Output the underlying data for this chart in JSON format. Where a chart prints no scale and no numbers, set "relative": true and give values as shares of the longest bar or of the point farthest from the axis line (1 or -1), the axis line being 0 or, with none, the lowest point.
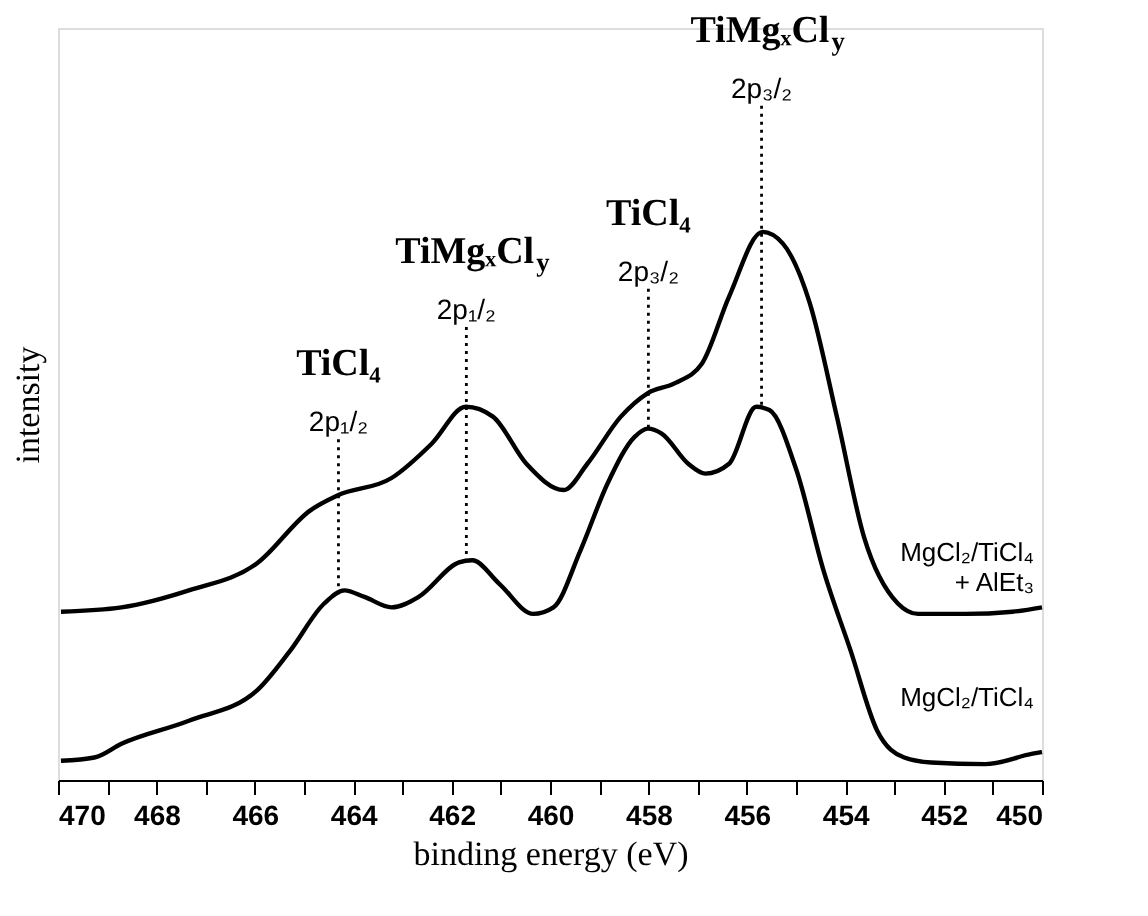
{
  "chart_data": {
    "type": "line",
    "relative": true,
    "xlabel": "binding energy (eV)",
    "ylabel": "intensity",
    "xlim": [
      470,
      450
    ],
    "xticks": [
      470,
      {
        "value": 469,
        "label": null
      },
      468,
      {
        "value": 467,
        "label": null
      },
      466,
      {
        "value": 465,
        "label": null
      },
      464,
      {
        "value": 463,
        "label": null
      },
      462,
      {
        "value": 461,
        "label": null
      },
      460,
      {
        "value": 459,
        "label": null
      },
      458,
      {
        "value": 457,
        "label": null
      },
      456,
      {
        "value": 455,
        "label": null
      },
      454,
      {
        "value": 453,
        "label": null
      },
      452,
      {
        "value": 451,
        "label": null
      },
      450
    ],
    "grid": false,
    "marker": "none",
    "line_style": "solid",
    "series": [
      {
        "name": "MgCl₂/TiCl₄\n+ AlEt₃",
        "color": "#000000",
        "x": [
          469.94,
          468.71,
          467.34,
          465.96,
          464.87,
          464.32,
          463.22,
          462.4,
          461.71,
          461.16,
          460.48,
          459.72,
          459.24,
          458.56,
          458.01,
          457.46,
          456.91,
          456.36,
          455.68,
          455.27,
          454.72,
          454.17,
          453.62,
          452.93,
          452.52,
          451.56,
          450.6,
          450.0
        ],
        "values": [
          0.307,
          0.315,
          0.346,
          0.395,
          0.492,
          0.519,
          0.551,
          0.614,
          0.681,
          0.663,
          0.577,
          0.529,
          0.577,
          0.663,
          0.706,
          0.724,
          0.76,
          0.882,
          1.0,
          0.979,
          0.87,
          0.663,
          0.444,
          0.322,
          0.303,
          0.303,
          0.307,
          0.315
        ]
      },
      {
        "name": "MgCl₂/TiCl₄",
        "color": "#000000",
        "x": [
          469.94,
          469.26,
          468.71,
          467.34,
          465.96,
          465.28,
          464.59,
          464.18,
          463.77,
          463.22,
          462.67,
          461.85,
          461.58,
          461.03,
          460.34,
          459.93,
          459.38,
          458.83,
          458.28,
          458.01,
          457.73,
          457.19,
          456.84,
          456.36,
          455.81,
          455.54,
          454.99,
          454.44,
          453.89,
          453.35,
          452.8,
          452.25,
          451.15,
          450.19,
          450.0
        ],
        "values": [
          0.035,
          0.041,
          0.066,
          0.108,
          0.163,
          0.236,
          0.322,
          0.346,
          0.334,
          0.315,
          0.334,
          0.397,
          0.401,
          0.358,
          0.303,
          0.315,
          0.419,
          0.541,
          0.626,
          0.641,
          0.632,
          0.577,
          0.559,
          0.577,
          0.681,
          0.675,
          0.565,
          0.382,
          0.236,
          0.09,
          0.041,
          0.032,
          0.029,
          0.048,
          0.051
        ]
      }
    ],
    "ref_lines": [
      {
        "axis": "x",
        "value": 464.3,
        "label": "TiCl₄\n2p₁/₂",
        "line_style": "dotted"
      },
      {
        "axis": "x",
        "value": 461.7,
        "label": "TiMgₓCl$_{y}$\n2p₁/₂",
        "line_style": "dotted"
      },
      {
        "axis": "x",
        "value": 458.0,
        "label": "TiCl₄\n2p₃/₂",
        "line_style": "dotted"
      },
      {
        "axis": "x",
        "value": 455.7,
        "label": "TiMgₓCl$_{y}$\n2p₃/₂",
        "line_style": "dotted"
      }
    ]
  }
}
